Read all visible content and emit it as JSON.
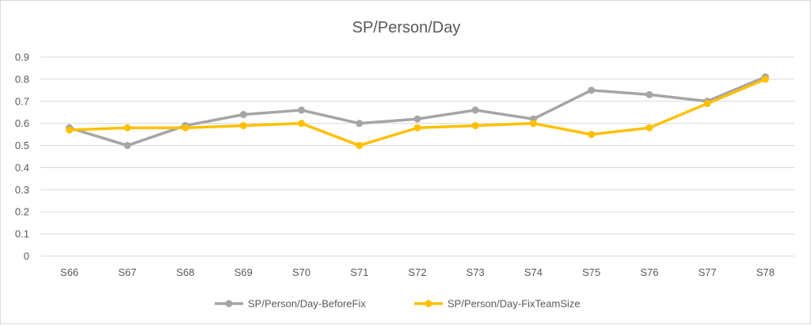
{
  "chart_data": {
    "type": "line",
    "title": "SP/Person/Day",
    "xlabel": "",
    "ylabel": "",
    "categories": [
      "S66",
      "S67",
      "S68",
      "S69",
      "S70",
      "S71",
      "S72",
      "S73",
      "S74",
      "S75",
      "S76",
      "S77",
      "S78"
    ],
    "ylim": [
      0,
      0.9
    ],
    "yticks": [
      "0",
      "0.1",
      "0.2",
      "0.3",
      "0.4",
      "0.5",
      "0.6",
      "0.7",
      "0.8",
      "0.9"
    ],
    "grid": true,
    "legend_position": "bottom",
    "series": [
      {
        "name": "SP/Person/Day-BeforeFix",
        "color": "#a5a5a5",
        "values": [
          0.58,
          0.5,
          0.59,
          0.64,
          0.66,
          0.6,
          0.62,
          0.66,
          0.62,
          0.75,
          0.73,
          0.7,
          0.81
        ]
      },
      {
        "name": "SP/Person/Day-FixTeamSize",
        "color": "#ffc000",
        "values": [
          0.57,
          0.58,
          0.58,
          0.59,
          0.6,
          0.5,
          0.58,
          0.59,
          0.6,
          0.55,
          0.58,
          0.69,
          0.8
        ]
      }
    ]
  }
}
